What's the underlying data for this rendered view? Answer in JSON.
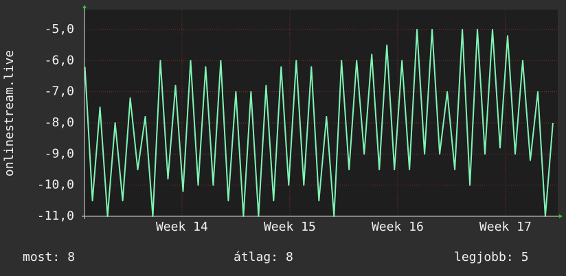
{
  "chart_data": {
    "type": "line",
    "y_label": "onlinestream.live",
    "x": [
      13.1,
      13.17,
      13.24,
      13.31,
      13.38,
      13.45,
      13.52,
      13.59,
      13.66,
      13.73,
      13.8,
      13.87,
      13.94,
      14.01,
      14.08,
      14.15,
      14.22,
      14.29,
      14.36,
      14.43,
      14.5,
      14.57,
      14.64,
      14.71,
      14.78,
      14.85,
      14.92,
      14.99,
      15.06,
      15.13,
      15.2,
      15.27,
      15.34,
      15.41,
      15.48,
      15.55,
      15.62,
      15.69,
      15.76,
      15.83,
      15.9,
      15.97,
      16.04,
      16.11,
      16.18,
      16.25,
      16.32,
      16.39,
      16.46,
      16.53,
      16.6,
      16.67,
      16.74,
      16.81,
      16.88,
      16.95,
      17.02,
      17.09,
      17.16,
      17.23,
      17.3,
      17.37,
      17.44
    ],
    "series": [
      {
        "color": "#7ff5b4",
        "values": [
          -6.2,
          -10.5,
          -7.5,
          -11,
          -8.0,
          -10.5,
          -7.2,
          -9.5,
          -7.8,
          -11,
          -6.0,
          -9.8,
          -6.8,
          -10.2,
          -6.0,
          -10.0,
          -6.2,
          -10.0,
          -6.0,
          -10.5,
          -7.0,
          -11,
          -7.0,
          -11,
          -6.8,
          -10.5,
          -6.2,
          -10.0,
          -6.0,
          -10.0,
          -6.2,
          -10.5,
          -7.8,
          -11,
          -6.0,
          -9.5,
          -6.0,
          -9.0,
          -5.8,
          -9.5,
          -5.5,
          -9.5,
          -6.0,
          -9.5,
          -5.0,
          -9.0,
          -5.0,
          -9.0,
          -7.0,
          -9.5,
          -5.0,
          -10.0,
          -5.0,
          -9.0,
          -5.0,
          -8.8,
          -5.2,
          -9.0,
          -6.0,
          -9.2,
          -7.0,
          -11,
          -8.0
        ]
      }
    ],
    "xlim": [
      13.096,
      17.485
    ],
    "xticks": [
      {
        "value": 14,
        "label": "Week 14"
      },
      {
        "value": 15,
        "label": "Week 15"
      },
      {
        "value": 16,
        "label": "Week 16"
      },
      {
        "value": 17,
        "label": "Week 17"
      }
    ],
    "ylim": [
      -11,
      -4.36
    ],
    "yticks": [
      {
        "value": -11,
        "label": "-11,0"
      },
      {
        "value": -10,
        "label": "-10,0"
      },
      {
        "value": -9,
        "label": "-9,0"
      },
      {
        "value": -8,
        "label": "-8,0"
      },
      {
        "value": -7,
        "label": "-7,0"
      },
      {
        "value": -6,
        "label": "-6,0"
      },
      {
        "value": -5,
        "label": "-5,0"
      }
    ],
    "grid": true
  },
  "stats": [
    {
      "label": "most:",
      "value": 8
    },
    {
      "label": "átlag:",
      "value": 8
    },
    {
      "label": "legjobb:",
      "value": 5
    }
  ]
}
